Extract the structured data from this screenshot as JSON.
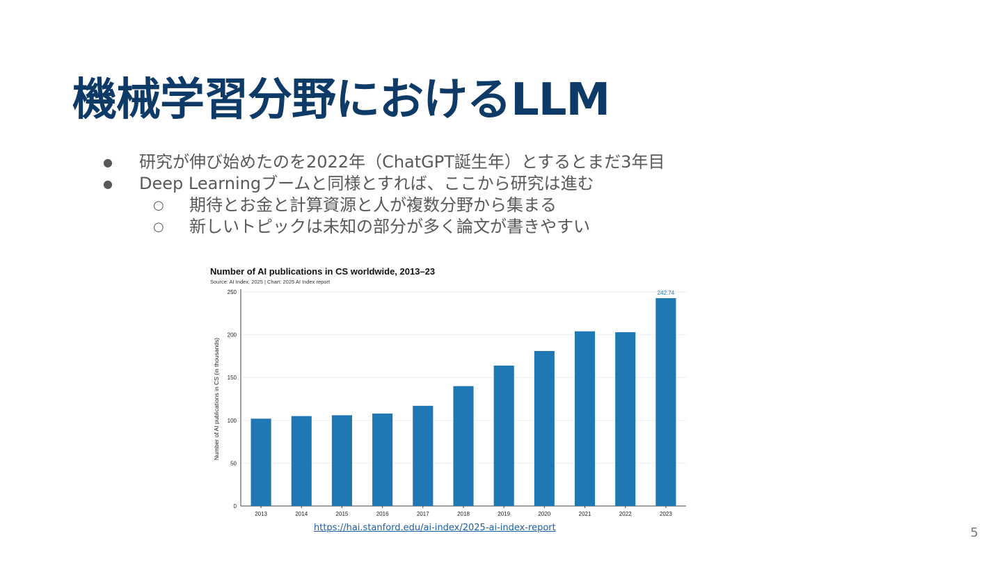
{
  "slide": {
    "title": "機械学習分野におけるLLM",
    "bullets": [
      {
        "level": 1,
        "marker": "●",
        "text": "研究が伸び始めたのを2022年（ChatGPT誕生年）とするとまだ3年目"
      },
      {
        "level": 1,
        "marker": "●",
        "text": "Deep Learningブームと同様とすれば、ここから研究は進む"
      },
      {
        "level": 2,
        "marker": "○",
        "text": "期待とお金と計算資源と人が複数分野から集まる"
      },
      {
        "level": 2,
        "marker": "○",
        "text": "新しいトピックは未知の部分が多く論文が書きやすい"
      }
    ],
    "source_link": "https://hai.stanford.edu/ai-index/2025-ai-index-report",
    "page_number": "5"
  },
  "colors": {
    "title": "#0d3a66",
    "bar": "#1f77b4",
    "annotation": "#1f77b4",
    "text_gray": "#595959"
  },
  "chart_data": {
    "type": "bar",
    "title": "Number of AI publications in CS worldwide, 2013–23",
    "subtitle": "Source: AI Index, 2025 | Chart: 2025 AI Index report",
    "xlabel": "",
    "ylabel": "Number of AI publications in CS (in thousands)",
    "categories": [
      "2013",
      "2014",
      "2015",
      "2016",
      "2017",
      "2018",
      "2019",
      "2020",
      "2021",
      "2022",
      "2023"
    ],
    "values": [
      102,
      105,
      106,
      108,
      117,
      140,
      164,
      181,
      204,
      203,
      242.74
    ],
    "ylim": [
      0,
      250
    ],
    "yticks": [
      0,
      50,
      100,
      150,
      200,
      250
    ],
    "data_labels": [
      {
        "index": 10,
        "text": "242.74"
      }
    ],
    "grid": true,
    "legend": "none"
  }
}
